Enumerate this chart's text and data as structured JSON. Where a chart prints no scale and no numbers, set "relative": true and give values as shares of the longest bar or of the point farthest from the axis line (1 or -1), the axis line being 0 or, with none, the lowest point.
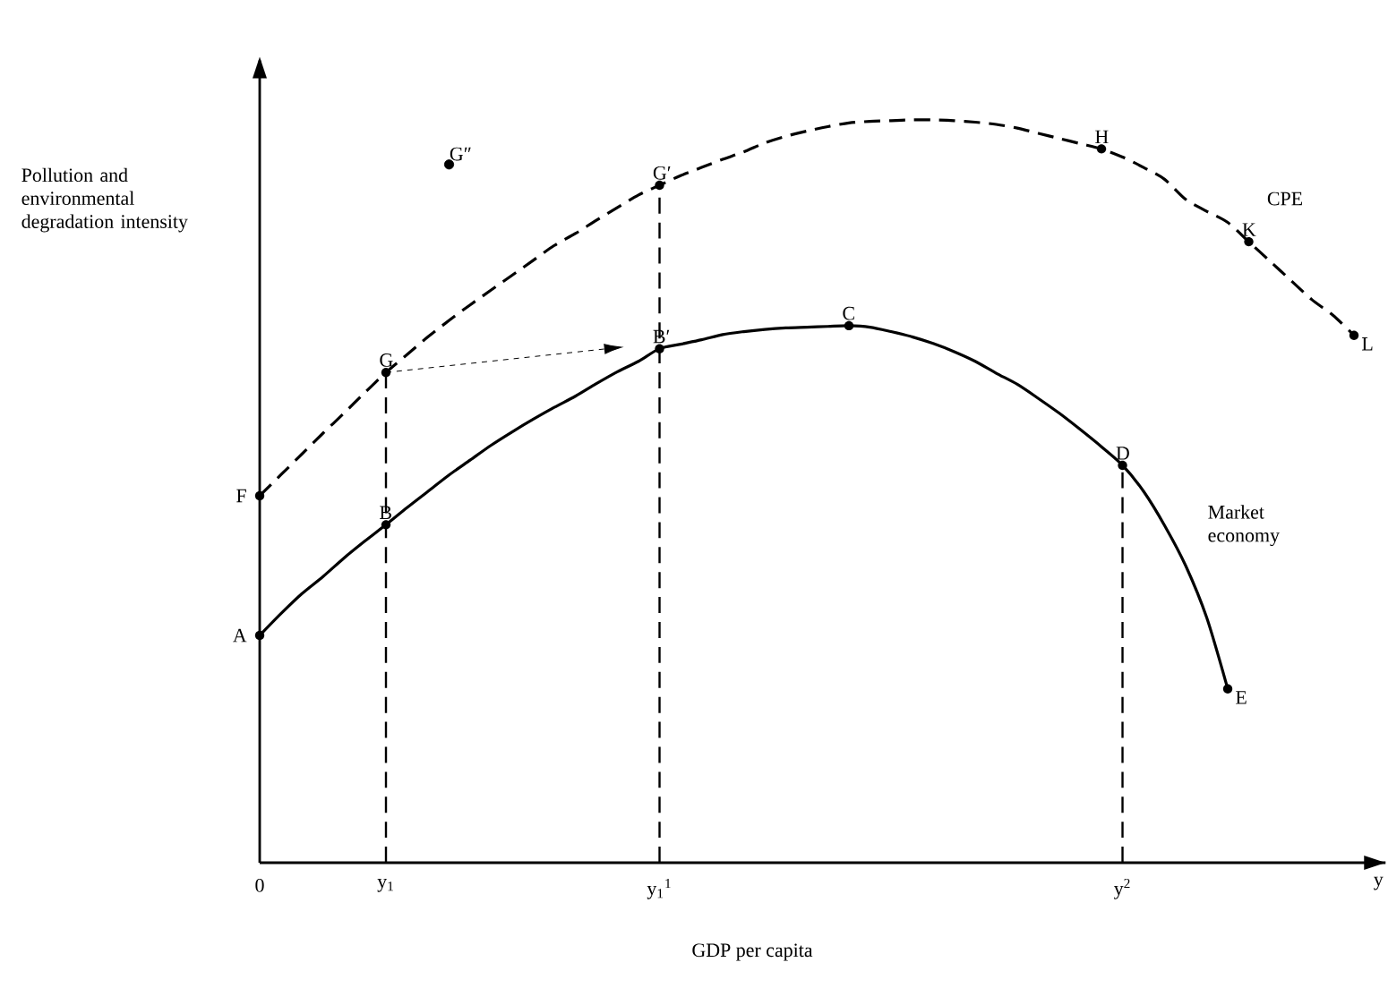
{
  "chart_data": {
    "type": "line",
    "relative": true,
    "xlabel": "GDP per capita",
    "ylabel": "Pollution and environmental degradation intensity",
    "categories": [
      "0",
      null,
      null,
      null,
      null,
      null,
      "y$_{1}$",
      null,
      null,
      null,
      null,
      null,
      null,
      null,
      null,
      null,
      null,
      null,
      null,
      "y$_{1}$$^{1}$",
      null,
      null,
      null,
      null,
      null,
      null,
      null,
      null,
      null,
      null,
      null,
      null,
      null,
      null,
      null,
      null,
      null,
      null,
      null,
      null,
      null,
      "y$^{2}$",
      null,
      null,
      null,
      null,
      null,
      null,
      null,
      null,
      null,
      null,
      null
    ],
    "legend": false,
    "series": [
      {
        "name": "Market economy",
        "color": "#000000",
        "line_style": "solid",
        "values": [
          0.306,
          0.335,
          0.362,
          0.385,
          0.41,
          0.433,
          0.455,
          0.478,
          0.5,
          0.522,
          0.542,
          0.562,
          0.58,
          0.597,
          0.613,
          0.628,
          0.645,
          0.661,
          0.675,
          0.692,
          0.698,
          0.704,
          0.711,
          0.715,
          0.718,
          0.72,
          0.721,
          0.722,
          0.723,
          0.721,
          0.715,
          0.708,
          0.699,
          0.688,
          0.675,
          0.659,
          0.644,
          0.625,
          0.605,
          0.583,
          0.56,
          0.535,
          0.5,
          0.454,
          0.4,
          0.33,
          0.234,
          null,
          null,
          null,
          null,
          null,
          null
        ]
      },
      {
        "name": "CPE",
        "color": "#000000",
        "line_style": "dashed",
        "values": [
          0.494,
          0.522,
          0.55,
          0.578,
          0.605,
          0.633,
          0.66,
          0.684,
          0.708,
          0.73,
          0.751,
          0.771,
          0.791,
          0.811,
          0.831,
          0.847,
          0.865,
          0.882,
          0.899,
          0.912,
          0.925,
          0.936,
          0.947,
          0.957,
          0.969,
          0.978,
          0.985,
          0.991,
          0.996,
          0.998,
          0.999,
          1.0,
          1.0,
          0.999,
          0.997,
          0.994,
          0.989,
          0.982,
          0.975,
          0.968,
          0.961,
          0.95,
          0.936,
          0.92,
          0.893,
          0.877,
          0.862,
          0.836,
          0.81,
          0.784,
          0.758,
          0.737,
          0.71
        ]
      },
      {
        "name": "G″",
        "type": "scatter",
        "color": "#000000",
        "values": [
          null,
          null,
          null,
          null,
          null,
          null,
          null,
          null,
          null,
          0.94,
          null,
          null,
          null,
          null,
          null,
          null,
          null,
          null,
          null,
          null,
          null,
          null,
          null,
          null,
          null,
          null,
          null,
          null,
          null,
          null,
          null,
          null,
          null,
          null,
          null,
          null,
          null,
          null,
          null,
          null,
          null,
          null,
          null,
          null,
          null,
          null,
          null,
          null,
          null,
          null,
          null,
          null,
          null
        ]
      }
    ],
    "ref_lines": [
      {
        "axis": "x",
        "value": "y$_{1}$",
        "line_style": "dashed"
      },
      {
        "axis": "x",
        "value": "y$_{1}$$^{1}$",
        "line_style": "dashed"
      },
      {
        "axis": "x",
        "value": "y$^{2}$",
        "line_style": "dashed"
      }
    ],
    "annotations": [
      {
        "text": "A",
        "x": "0",
        "y": 0.306
      },
      {
        "text": "B",
        "y": 0.455
      },
      {
        "text": "C",
        "y": 0.723
      },
      {
        "text": "D",
        "y": 0.535
      },
      {
        "text": "E",
        "y": 0.234
      },
      {
        "text": "F",
        "x": "0",
        "y": 0.494
      },
      {
        "text": "G",
        "y": 0.66
      },
      {
        "text": "B′",
        "y": 0.692
      },
      {
        "text": "G′",
        "y": 0.912
      },
      {
        "text": "H",
        "y": 0.961
      },
      {
        "text": "K",
        "y": 0.836
      },
      {
        "text": "L",
        "y": 0.71
      },
      "y"
    ]
  }
}
